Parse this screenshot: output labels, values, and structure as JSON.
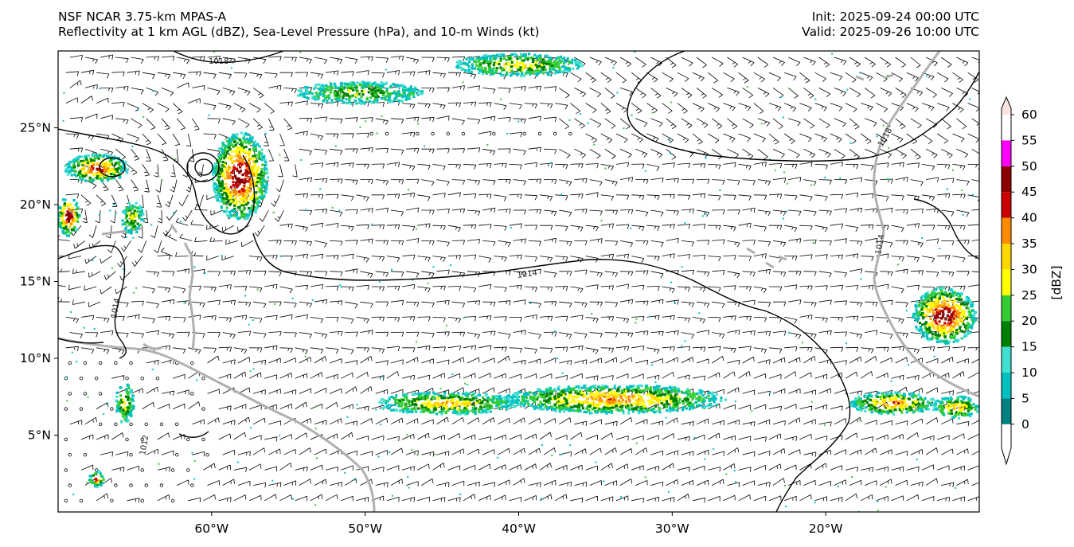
{
  "header": {
    "model": "NSF NCAR 3.75-km MPAS-A",
    "fields": "Reflectivity at 1 km AGL (dBZ), Sea-Level Pressure (hPa), and 10-m Winds (kt)",
    "init": "Init: 2025-09-24 00:00 UTC",
    "valid": "Valid: 2025-09-26 10:00 UTC"
  },
  "map": {
    "lon_range": [
      -70,
      -10
    ],
    "lat_range": [
      0,
      30
    ],
    "lat_ticks": [
      {
        "value": 25,
        "label": "25°N"
      },
      {
        "value": 20,
        "label": "20°N"
      },
      {
        "value": 15,
        "label": "15°N"
      },
      {
        "value": 10,
        "label": "10°N"
      },
      {
        "value": 5,
        "label": "5°N"
      }
    ],
    "lon_ticks": [
      {
        "value": -60,
        "label": "60°W"
      },
      {
        "value": -50,
        "label": "50°W"
      },
      {
        "value": -40,
        "label": "40°W"
      },
      {
        "value": -30,
        "label": "30°W"
      },
      {
        "value": -20,
        "label": "20°W"
      }
    ],
    "isobar_labels": [
      "1018",
      "1014",
      "1018",
      "1014",
      "1014",
      "1012"
    ]
  },
  "colorbar": {
    "label": "[dBZ]",
    "levels": [
      "0",
      "5",
      "10",
      "15",
      "20",
      "25",
      "30",
      "35",
      "40",
      "45",
      "50",
      "55",
      "60"
    ],
    "colors": [
      "#ffffff",
      "#008080",
      "#00c0c0",
      "#40e0d0",
      "#008000",
      "#32cd32",
      "#ffff00",
      "#ffd700",
      "#ff8c00",
      "#cc0000",
      "#8b0000",
      "#ff00ff",
      "#ffe4e1"
    ]
  }
}
